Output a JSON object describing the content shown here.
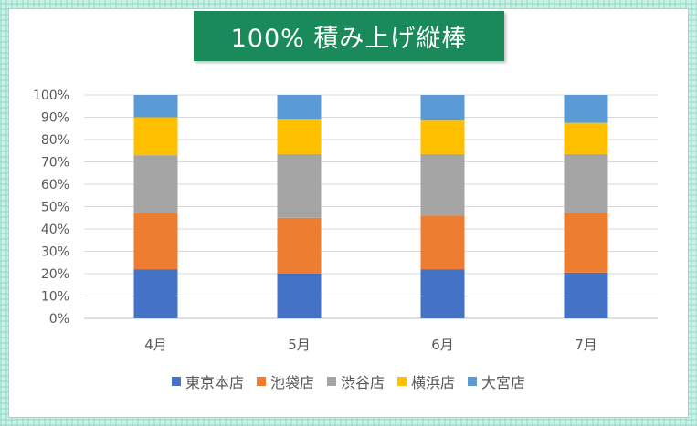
{
  "chart_data": {
    "type": "bar",
    "stacked": true,
    "percent": true,
    "title": "100% 積み上げ縦棒",
    "categories": [
      "4月",
      "5月",
      "6月",
      "7月"
    ],
    "y_ticks": [
      "0%",
      "10%",
      "20%",
      "30%",
      "40%",
      "50%",
      "60%",
      "70%",
      "80%",
      "90%",
      "100%"
    ],
    "ylim": [
      0,
      100
    ],
    "grid": true,
    "legend_position": "bottom",
    "series": [
      {
        "name": "東京本店",
        "color": "#4472c4",
        "values": [
          22,
          20,
          22,
          20.5
        ]
      },
      {
        "name": "池袋店",
        "color": "#ed7d31",
        "values": [
          25,
          25,
          24,
          26.5
        ]
      },
      {
        "name": "渋谷店",
        "color": "#a5a5a5",
        "values": [
          26,
          28.5,
          27.5,
          26.5
        ]
      },
      {
        "name": "横浜店",
        "color": "#ffc000",
        "values": [
          17,
          15.5,
          15,
          14
        ]
      },
      {
        "name": "大宮店",
        "color": "#5b9bd5",
        "values": [
          10,
          11,
          11.5,
          12.5
        ]
      }
    ]
  }
}
